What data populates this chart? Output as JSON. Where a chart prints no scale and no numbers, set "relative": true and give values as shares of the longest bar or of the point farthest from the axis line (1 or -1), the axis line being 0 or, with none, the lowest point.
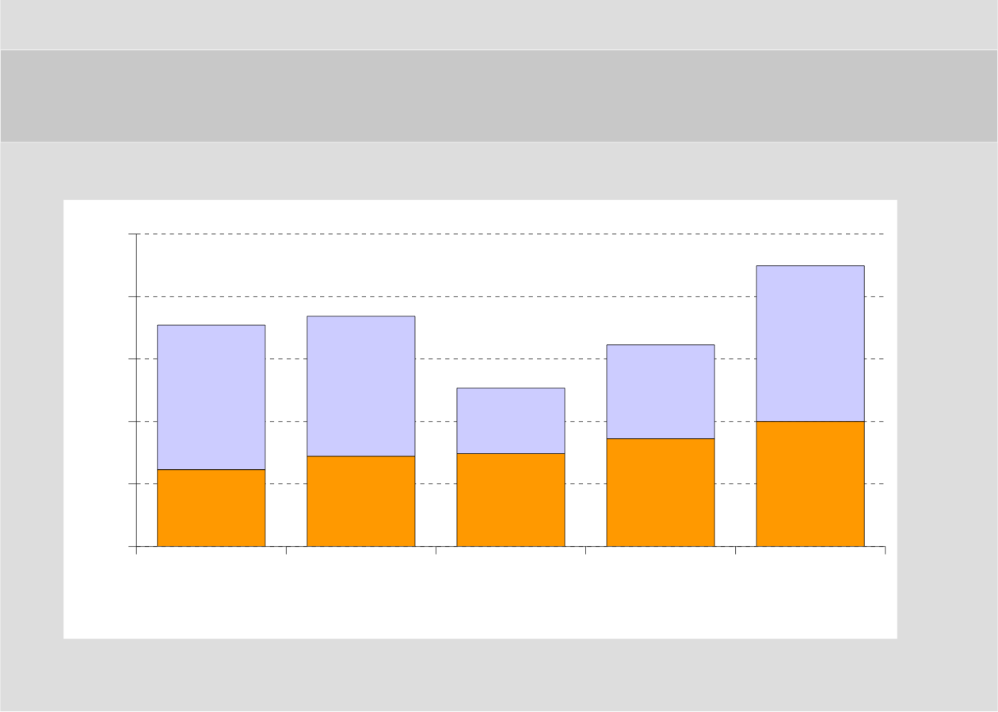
{
  "chart_data": {
    "type": "bar",
    "stacked": true,
    "relative": true,
    "grid": "y",
    "categories": [
      null,
      null,
      null,
      null,
      null
    ],
    "series": [
      {
        "color": "#ff9900",
        "values": [
          0.273,
          0.321,
          0.33,
          0.383,
          0.445
        ]
      },
      {
        "color": "#ccccff",
        "values": [
          0.515,
          0.499,
          0.234,
          0.335,
          0.555
        ]
      }
    ]
  }
}
